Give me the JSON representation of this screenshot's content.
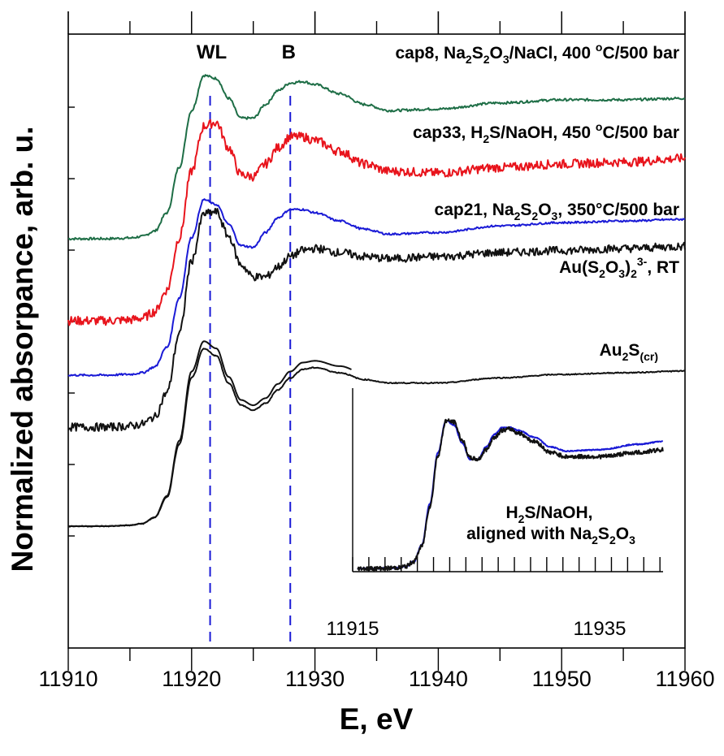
{
  "colors": {
    "cap8": "#1e6e46",
    "cap33": "#e8141c",
    "cap21": "#1a1ad6",
    "AuS2O3": "#111111",
    "Au2S": "#111111",
    "Na2S2O3": "#111111",
    "inset_blue": "#1a1ad6",
    "inset_black": "#111111",
    "guide": "#1a1ad6"
  },
  "chart_data": [
    {
      "type": "line",
      "xlabel": "E, eV",
      "ylabel": "Normalized absorpance, arb. u.",
      "xlim": [
        11910,
        11960
      ],
      "xticks": [
        11910,
        11920,
        11930,
        11940,
        11950,
        11960
      ],
      "yticks_labeled": false,
      "offset_traces": true,
      "annotations": [
        {
          "label": "WL",
          "x": 11921.5
        },
        {
          "label": "B",
          "x": 11928.0
        }
      ],
      "series": [
        {
          "key": "cap8",
          "label": {
            "pre": "cap8, Na",
            "s1": "2",
            "m1": "S",
            "s2": "2",
            "m2": "O",
            "s3": "3",
            "post": "/NaCl, 400 ",
            "deg": "o",
            "tail": "C/500 bar"
          },
          "x": [
            11910,
            11913,
            11915,
            11916,
            11917,
            11918,
            11919,
            11920,
            11921,
            11922,
            11923,
            11924,
            11925,
            11926,
            11927,
            11928,
            11929,
            11930,
            11932,
            11934,
            11936,
            11940,
            11945,
            11950,
            11955,
            11960
          ],
          "y": [
            0,
            0,
            0.005,
            0.015,
            0.05,
            0.17,
            0.47,
            0.84,
            1.07,
            1.05,
            0.92,
            0.79,
            0.79,
            0.88,
            0.97,
            1.02,
            1.03,
            1.01,
            0.95,
            0.88,
            0.84,
            0.85,
            0.89,
            0.91,
            0.91,
            0.92
          ],
          "noise": 0.008
        },
        {
          "key": "cap33",
          "label": {
            "pre": "cap33, H",
            "s1": "2",
            "post": "S/NaOH, 450 ",
            "deg": "o",
            "tail": "C/500 bar"
          },
          "x": [
            11910,
            11913,
            11915,
            11916,
            11917,
            11918,
            11919,
            11920,
            11921,
            11922,
            11923,
            11924,
            11925,
            11926,
            11927,
            11928,
            11929,
            11930,
            11932,
            11934,
            11936,
            11940,
            11945,
            11950,
            11955,
            11960
          ],
          "y": [
            0,
            0,
            0.005,
            0.015,
            0.05,
            0.17,
            0.46,
            0.83,
            1.08,
            1.1,
            0.96,
            0.81,
            0.8,
            0.87,
            0.96,
            1.02,
            1.02,
            1.0,
            0.94,
            0.87,
            0.83,
            0.82,
            0.85,
            0.87,
            0.88,
            0.9
          ],
          "noise": 0.025
        },
        {
          "key": "cap21",
          "label": {
            "pre": "cap21, Na",
            "s1": "2",
            "m1": "S",
            "s2": "2",
            "m2": "O",
            "s3": "3",
            "tail": ", 350°C/500 bar"
          },
          "x": [
            11910,
            11913,
            11915,
            11916,
            11917,
            11918,
            11919,
            11920,
            11921,
            11922,
            11923,
            11924,
            11925,
            11926,
            11927,
            11928,
            11929,
            11930,
            11932,
            11934,
            11936,
            11940,
            11945,
            11950,
            11955,
            11960
          ],
          "y": [
            0,
            0,
            0.005,
            0.015,
            0.05,
            0.17,
            0.47,
            0.84,
            1.07,
            1.04,
            0.92,
            0.79,
            0.78,
            0.87,
            0.96,
            1.01,
            1.01,
            0.99,
            0.94,
            0.89,
            0.86,
            0.87,
            0.91,
            0.93,
            0.94,
            0.95
          ],
          "noise": 0.006
        },
        {
          "key": "AuS2O3",
          "label": {
            "pre": "Au(S",
            "s1": "2",
            "m1": "O",
            "s2": "3",
            "m2": ")",
            "s3": "2",
            "sup": "3-",
            "tail": ", RT"
          },
          "x": [
            11910,
            11913,
            11915,
            11916,
            11917,
            11918,
            11919,
            11920,
            11921,
            11922,
            11923,
            11924,
            11925,
            11926,
            11927,
            11928,
            11929,
            11930,
            11932,
            11934,
            11936,
            11940,
            11945,
            11950,
            11955,
            11960
          ],
          "y": [
            0,
            0,
            0.005,
            0.015,
            0.05,
            0.17,
            0.46,
            0.82,
            1.05,
            1.06,
            0.94,
            0.8,
            0.74,
            0.74,
            0.79,
            0.84,
            0.87,
            0.88,
            0.86,
            0.84,
            0.83,
            0.84,
            0.86,
            0.87,
            0.88,
            0.89
          ],
          "noise": 0.02
        },
        {
          "key": "Au2S",
          "label": {
            "pre": "Au",
            "s1": "2",
            "m1": "S",
            "sub": "(cr)"
          },
          "x": [
            11910,
            11913,
            11915,
            11916,
            11917,
            11918,
            11919,
            11920,
            11921,
            11922,
            11923,
            11924,
            11925,
            11926,
            11927,
            11928,
            11929,
            11930,
            11932,
            11934,
            11936,
            11940,
            11945,
            11950,
            11955,
            11960
          ],
          "y": [
            0,
            0,
            0.005,
            0.015,
            0.05,
            0.17,
            0.48,
            0.87,
            1.04,
            1.0,
            0.84,
            0.71,
            0.68,
            0.72,
            0.8,
            0.87,
            0.92,
            0.93,
            0.9,
            0.86,
            0.84,
            0.84,
            0.87,
            0.89,
            0.9,
            0.91
          ],
          "noise": 0.003
        },
        {
          "key": "Na2S2O3",
          "label": {
            "pre": "Na",
            "s1": "2",
            "m1": "S",
            "s2": "2",
            "m2": "O",
            "s3": "3"
          },
          "x": [
            11910,
            11913,
            11915,
            11916,
            11917,
            11918,
            11919,
            11920,
            11921,
            11922,
            11923,
            11924,
            11925,
            11926,
            11927,
            11928,
            11929,
            11930,
            11932,
            11934,
            11936,
            11940,
            11945,
            11950,
            11955,
            11960
          ],
          "y": [
            0,
            0,
            0.005,
            0.015,
            0.05,
            0.17,
            0.47,
            0.84,
            1.07,
            1.04,
            0.91,
            0.79,
            0.79,
            0.88,
            0.97,
            1.02,
            1.02,
            1.0,
            0.95,
            0.88,
            0.85,
            0.86,
            0.9,
            0.92,
            0.92,
            0.93
          ],
          "noise": 0.0
        }
      ]
    },
    {
      "type": "line",
      "role": "inset",
      "xticks_labeled": [
        11915,
        11935
      ],
      "xlim": [
        11910,
        11948
      ],
      "notes": [
        {
          "pre": "H",
          "s1": "2",
          "post": "S/NaOH,"
        },
        {
          "pre": "aligned with Na",
          "s1": "2",
          "m1": "S",
          "s2": "2",
          "m2": "O",
          "s3": "3"
        }
      ],
      "series": [
        {
          "key": "inset_blue",
          "x": [
            11910,
            11913,
            11915,
            11916,
            11917,
            11918,
            11919,
            11920,
            11921,
            11922,
            11923,
            11924,
            11925,
            11926,
            11927,
            11928,
            11929,
            11930,
            11932,
            11934,
            11936,
            11940,
            11945,
            11948
          ],
          "y": [
            0,
            0,
            0.005,
            0.015,
            0.05,
            0.17,
            0.47,
            0.84,
            1.07,
            1.04,
            0.91,
            0.79,
            0.79,
            0.88,
            0.97,
            1.02,
            1.02,
            1.0,
            0.95,
            0.88,
            0.85,
            0.86,
            0.9,
            0.92
          ],
          "noise": 0.004
        },
        {
          "key": "inset_black",
          "x": [
            11910,
            11913,
            11915,
            11916,
            11917,
            11918,
            11919,
            11920,
            11921,
            11922,
            11923,
            11924,
            11925,
            11926,
            11927,
            11928,
            11929,
            11930,
            11932,
            11934,
            11936,
            11940,
            11945,
            11948
          ],
          "y": [
            0,
            0,
            0.005,
            0.015,
            0.05,
            0.16,
            0.45,
            0.82,
            1.07,
            1.06,
            0.93,
            0.8,
            0.79,
            0.86,
            0.95,
            1.0,
            1.01,
            0.98,
            0.92,
            0.84,
            0.81,
            0.81,
            0.84,
            0.86
          ],
          "noise": 0.015
        }
      ]
    }
  ]
}
